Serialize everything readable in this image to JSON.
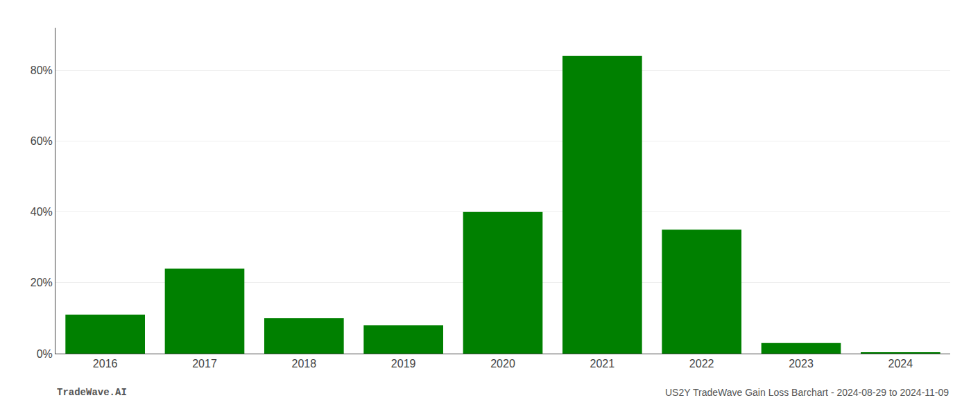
{
  "chart_data": {
    "type": "bar",
    "categories": [
      "2016",
      "2017",
      "2018",
      "2019",
      "2020",
      "2021",
      "2022",
      "2023",
      "2024"
    ],
    "values": [
      11.0,
      24.0,
      10.0,
      8.0,
      40.0,
      84.0,
      35.0,
      3.0,
      0.2
    ],
    "color": "#008000",
    "ylim": [
      0,
      92
    ],
    "yticks": [
      {
        "value": 0,
        "label": "0%"
      },
      {
        "value": 20,
        "label": "20%"
      },
      {
        "value": 40,
        "label": "40%"
      },
      {
        "value": 60,
        "label": "60%"
      },
      {
        "value": 80,
        "label": "80%"
      }
    ],
    "grid": true,
    "annotations": [
      "TradeWave.AI",
      "US2Y TradeWave Gain Loss Barchart - 2024-08-29 to 2024-11-09"
    ]
  }
}
